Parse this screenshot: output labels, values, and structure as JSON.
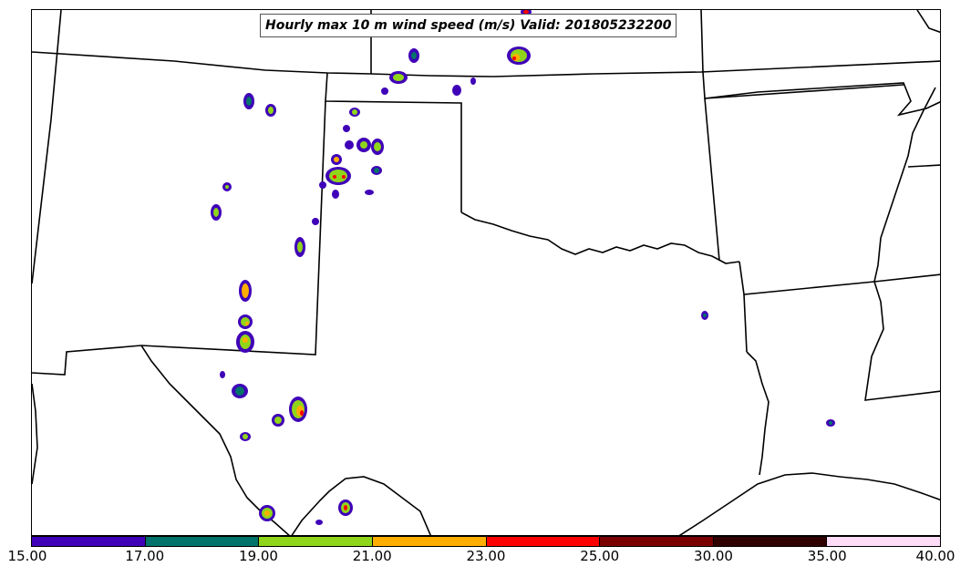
{
  "title": "Hourly max 10 m wind speed (m/s) Valid: 201805232200",
  "colorbar": {
    "segments": [
      {
        "from": "15.00",
        "to": "17.00",
        "color": "#3f00b8"
      },
      {
        "from": "17.00",
        "to": "19.00",
        "color": "#00736b"
      },
      {
        "from": "19.00",
        "to": "21.00",
        "color": "#8fd61b"
      },
      {
        "from": "21.00",
        "to": "23.00",
        "color": "#ffae00"
      },
      {
        "from": "23.00",
        "to": "25.00",
        "color": "#ff0000"
      },
      {
        "from": "25.00",
        "to": "30.00",
        "color": "#7a0000"
      },
      {
        "from": "30.00",
        "to": "35.00",
        "color": "#300000"
      },
      {
        "from": "35.00",
        "to": "40.00",
        "color": "#ffdcf8"
      }
    ],
    "tick_labels": [
      "15.00",
      "17.00",
      "19.00",
      "21.00",
      "23.00",
      "25.00",
      "30.00",
      "35.00",
      "40.00"
    ]
  }
}
